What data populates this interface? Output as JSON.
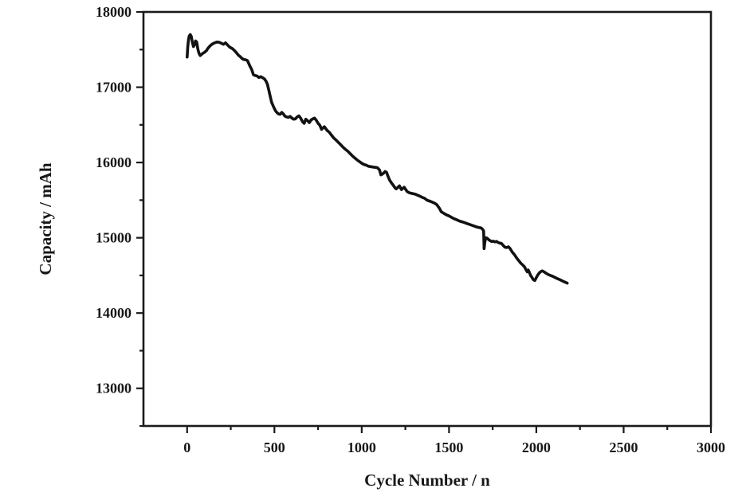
{
  "figure": {
    "background_color": "#ffffff",
    "frame_color": "#1a1a1a",
    "tick_color": "#1a1a1a",
    "text_color": "#181818"
  },
  "chart_data": {
    "type": "line",
    "title": "",
    "xlabel": "Cycle Number / n",
    "ylabel": "Capacity / mAh",
    "xlim": [
      -250,
      3000
    ],
    "ylim": [
      12500,
      18000
    ],
    "grid": false,
    "legend_position": "none",
    "x_major_ticks": [
      0,
      500,
      1000,
      1500,
      2000,
      2500,
      3000
    ],
    "x_minor_ticks": [
      250,
      750,
      1250,
      1750,
      2250,
      2750
    ],
    "y_major_ticks": [
      13000,
      14000,
      15000,
      16000,
      17000,
      18000
    ],
    "y_minor_ticks": [
      12500,
      13500,
      14500,
      15500,
      16500,
      17500
    ],
    "series": [
      {
        "name": "capacity-trace",
        "color": "#121212",
        "stroke_width": 3.6,
        "points": [
          [
            0,
            17400
          ],
          [
            4,
            17540
          ],
          [
            8,
            17630
          ],
          [
            12,
            17680
          ],
          [
            18,
            17700
          ],
          [
            24,
            17675
          ],
          [
            30,
            17600
          ],
          [
            36,
            17540
          ],
          [
            42,
            17560
          ],
          [
            48,
            17615
          ],
          [
            55,
            17600
          ],
          [
            62,
            17500
          ],
          [
            68,
            17450
          ],
          [
            75,
            17420
          ],
          [
            82,
            17435
          ],
          [
            90,
            17450
          ],
          [
            100,
            17465
          ],
          [
            110,
            17485
          ],
          [
            120,
            17520
          ],
          [
            132,
            17550
          ],
          [
            145,
            17575
          ],
          [
            158,
            17590
          ],
          [
            170,
            17600
          ],
          [
            182,
            17598
          ],
          [
            195,
            17585
          ],
          [
            208,
            17570
          ],
          [
            220,
            17590
          ],
          [
            232,
            17560
          ],
          [
            245,
            17530
          ],
          [
            258,
            17515
          ],
          [
            270,
            17490
          ],
          [
            282,
            17460
          ],
          [
            294,
            17425
          ],
          [
            305,
            17405
          ],
          [
            313,
            17385
          ],
          [
            322,
            17370
          ],
          [
            334,
            17365
          ],
          [
            345,
            17355
          ],
          [
            352,
            17320
          ],
          [
            360,
            17280
          ],
          [
            370,
            17235
          ],
          [
            380,
            17165
          ],
          [
            390,
            17155
          ],
          [
            400,
            17150
          ],
          [
            411,
            17130
          ],
          [
            422,
            17140
          ],
          [
            433,
            17125
          ],
          [
            443,
            17110
          ],
          [
            452,
            17080
          ],
          [
            460,
            17040
          ],
          [
            468,
            16960
          ],
          [
            476,
            16880
          ],
          [
            484,
            16800
          ],
          [
            492,
            16755
          ],
          [
            500,
            16715
          ],
          [
            508,
            16680
          ],
          [
            516,
            16660
          ],
          [
            524,
            16645
          ],
          [
            533,
            16640
          ],
          [
            542,
            16665
          ],
          [
            551,
            16645
          ],
          [
            560,
            16615
          ],
          [
            570,
            16605
          ],
          [
            580,
            16600
          ],
          [
            590,
            16612
          ],
          [
            600,
            16590
          ],
          [
            610,
            16575
          ],
          [
            620,
            16580
          ],
          [
            630,
            16605
          ],
          [
            640,
            16620
          ],
          [
            650,
            16590
          ],
          [
            660,
            16545
          ],
          [
            670,
            16520
          ],
          [
            680,
            16575
          ],
          [
            690,
            16555
          ],
          [
            700,
            16530
          ],
          [
            710,
            16565
          ],
          [
            720,
            16580
          ],
          [
            730,
            16590
          ],
          [
            740,
            16560
          ],
          [
            750,
            16520
          ],
          [
            760,
            16495
          ],
          [
            770,
            16440
          ],
          [
            778,
            16460
          ],
          [
            786,
            16475
          ],
          [
            794,
            16450
          ],
          [
            802,
            16425
          ],
          [
            815,
            16400
          ],
          [
            828,
            16360
          ],
          [
            840,
            16325
          ],
          [
            852,
            16300
          ],
          [
            865,
            16270
          ],
          [
            878,
            16240
          ],
          [
            892,
            16205
          ],
          [
            906,
            16175
          ],
          [
            920,
            16150
          ],
          [
            935,
            16115
          ],
          [
            950,
            16080
          ],
          [
            963,
            16055
          ],
          [
            976,
            16030
          ],
          [
            988,
            16010
          ],
          [
            1000,
            15990
          ],
          [
            1012,
            15975
          ],
          [
            1025,
            15965
          ],
          [
            1038,
            15950
          ],
          [
            1052,
            15945
          ],
          [
            1065,
            15940
          ],
          [
            1078,
            15935
          ],
          [
            1090,
            15930
          ],
          [
            1102,
            15900
          ],
          [
            1110,
            15835
          ],
          [
            1118,
            15845
          ],
          [
            1126,
            15860
          ],
          [
            1134,
            15880
          ],
          [
            1142,
            15870
          ],
          [
            1150,
            15820
          ],
          [
            1160,
            15765
          ],
          [
            1170,
            15730
          ],
          [
            1180,
            15700
          ],
          [
            1190,
            15665
          ],
          [
            1198,
            15650
          ],
          [
            1207,
            15670
          ],
          [
            1216,
            15690
          ],
          [
            1227,
            15640
          ],
          [
            1235,
            15655
          ],
          [
            1243,
            15672
          ],
          [
            1252,
            15640
          ],
          [
            1260,
            15615
          ],
          [
            1270,
            15600
          ],
          [
            1282,
            15592
          ],
          [
            1295,
            15585
          ],
          [
            1308,
            15578
          ],
          [
            1320,
            15565
          ],
          [
            1333,
            15552
          ],
          [
            1346,
            15538
          ],
          [
            1360,
            15525
          ],
          [
            1374,
            15500
          ],
          [
            1388,
            15488
          ],
          [
            1402,
            15475
          ],
          [
            1416,
            15462
          ],
          [
            1430,
            15440
          ],
          [
            1444,
            15395
          ],
          [
            1456,
            15345
          ],
          [
            1470,
            15325
          ],
          [
            1485,
            15305
          ],
          [
            1500,
            15290
          ],
          [
            1515,
            15270
          ],
          [
            1530,
            15252
          ],
          [
            1545,
            15238
          ],
          [
            1560,
            15222
          ],
          [
            1575,
            15212
          ],
          [
            1590,
            15200
          ],
          [
            1605,
            15188
          ],
          [
            1620,
            15175
          ],
          [
            1636,
            15162
          ],
          [
            1652,
            15148
          ],
          [
            1668,
            15138
          ],
          [
            1684,
            15130
          ],
          [
            1692,
            15115
          ],
          [
            1698,
            15090
          ],
          [
            1701,
            14855
          ],
          [
            1705,
            14940
          ],
          [
            1710,
            15000
          ],
          [
            1718,
            14995
          ],
          [
            1727,
            14975
          ],
          [
            1736,
            14960
          ],
          [
            1745,
            14950
          ],
          [
            1754,
            14955
          ],
          [
            1763,
            14945
          ],
          [
            1772,
            14952
          ],
          [
            1781,
            14938
          ],
          [
            1790,
            14930
          ],
          [
            1800,
            14925
          ],
          [
            1810,
            14900
          ],
          [
            1820,
            14875
          ],
          [
            1830,
            14870
          ],
          [
            1840,
            14880
          ],
          [
            1850,
            14855
          ],
          [
            1862,
            14810
          ],
          [
            1875,
            14775
          ],
          [
            1888,
            14730
          ],
          [
            1900,
            14695
          ],
          [
            1912,
            14660
          ],
          [
            1922,
            14640
          ],
          [
            1932,
            14615
          ],
          [
            1941,
            14575
          ],
          [
            1948,
            14548
          ],
          [
            1954,
            14572
          ],
          [
            1960,
            14540
          ],
          [
            1967,
            14500
          ],
          [
            1974,
            14478
          ],
          [
            1982,
            14445
          ],
          [
            1991,
            14432
          ],
          [
            2000,
            14470
          ],
          [
            2008,
            14505
          ],
          [
            2016,
            14530
          ],
          [
            2025,
            14550
          ],
          [
            2034,
            14560
          ],
          [
            2044,
            14548
          ],
          [
            2055,
            14530
          ],
          [
            2066,
            14515
          ],
          [
            2078,
            14502
          ],
          [
            2090,
            14492
          ],
          [
            2103,
            14478
          ],
          [
            2116,
            14462
          ],
          [
            2130,
            14448
          ],
          [
            2144,
            14432
          ],
          [
            2158,
            14418
          ],
          [
            2170,
            14405
          ],
          [
            2177,
            14398
          ]
        ]
      }
    ]
  }
}
